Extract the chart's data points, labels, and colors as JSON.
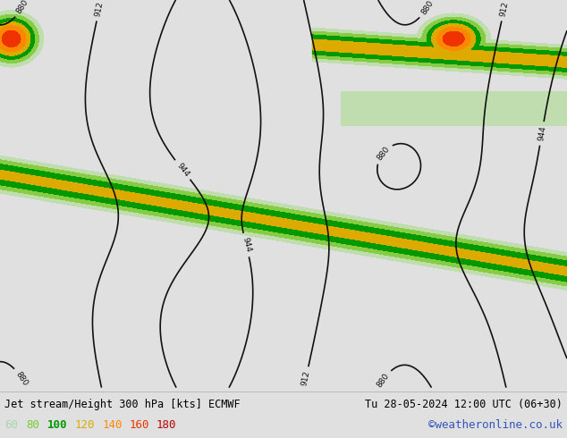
{
  "title_left": "Jet stream/Height 300 hPa [kts] ECMWF",
  "title_right": "Tu 28-05-2024 12:00 UTC (06+30)",
  "credit": "©weatheronline.co.uk",
  "legend_values": [
    "60",
    "80",
    "100",
    "120",
    "140",
    "160",
    "180"
  ],
  "legend_colors": [
    "#aad4aa",
    "#77cc33",
    "#009900",
    "#ddaa00",
    "#ff8800",
    "#ee3300",
    "#bb0000"
  ],
  "bg_color": "#e0e0e0",
  "ocean_color": "#d2d2d2",
  "land_color": "#d8d8d8",
  "title_fontsize": 8.5,
  "legend_fontsize": 9,
  "credit_color": "#3355bb",
  "title_color": "#000000",
  "fill_levels": [
    60,
    80,
    100,
    120,
    140,
    160,
    180,
    220
  ],
  "fill_colors": [
    "#c0ddb0",
    "#88cc44",
    "#009900",
    "#ddaa00",
    "#ff8800",
    "#ee3300",
    "#bb0000"
  ],
  "contour_color": "#111111",
  "contour_levels": [
    844,
    880,
    912,
    944
  ],
  "contour_lw": 1.2
}
